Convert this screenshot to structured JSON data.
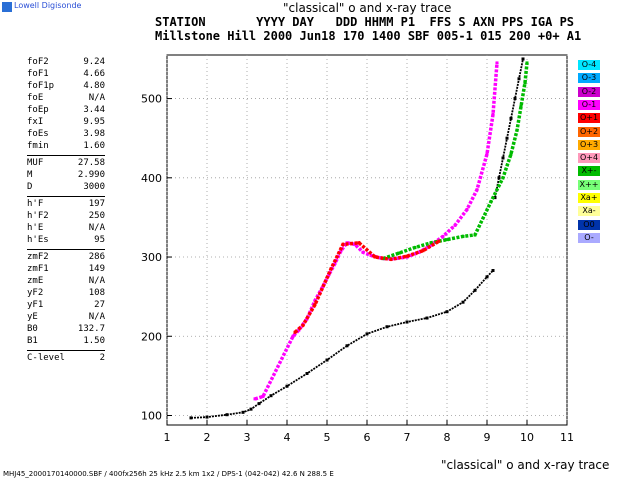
{
  "logo": {
    "text": "Lowell Digisonde"
  },
  "titles": {
    "top": "\"classical\" o and x-ray trace",
    "bottom": "\"classical\" o and x-ray trace"
  },
  "header": {
    "line1": "STATION       YYYY DAY   DDD HHMM P1  FFS S AXN PPS IGA PS",
    "line2": "Millstone Hill 2000 Jun18 170 1400 SBF 005-1 015 200 +0+ A1"
  },
  "params": [
    [
      {
        "name": "foF2",
        "value": "9.24"
      },
      {
        "name": "foF1",
        "value": "4.66"
      },
      {
        "name": "foF1p",
        "value": "4.80"
      },
      {
        "name": "foE",
        "value": "N/A"
      },
      {
        "name": "foEp",
        "value": "3.44"
      },
      {
        "name": "fxI",
        "value": "9.95"
      },
      {
        "name": "foEs",
        "value": "3.98"
      },
      {
        "name": "fmin",
        "value": "1.60"
      }
    ],
    [
      {
        "name": "MUF",
        "value": "27.58"
      },
      {
        "name": "M",
        "value": "2.990"
      },
      {
        "name": "D",
        "value": "3000"
      }
    ],
    [
      {
        "name": "h'F",
        "value": "197"
      },
      {
        "name": "h'F2",
        "value": "250"
      },
      {
        "name": "h'E",
        "value": "N/A"
      },
      {
        "name": "h'Es",
        "value": "95"
      }
    ],
    [
      {
        "name": "zmF2",
        "value": "286"
      },
      {
        "name": "zmF1",
        "value": "149"
      },
      {
        "name": "zmE",
        "value": "N/A"
      },
      {
        "name": "yF2",
        "value": "108"
      },
      {
        "name": "yF1",
        "value": "27"
      },
      {
        "name": "yE",
        "value": "N/A"
      },
      {
        "name": "B0",
        "value": "132.7"
      },
      {
        "name": "B1",
        "value": "1.50"
      }
    ],
    [
      {
        "name": "C-level",
        "value": "2"
      }
    ]
  ],
  "legend": [
    {
      "label": "O-4",
      "color": "#00e5ff"
    },
    {
      "label": "O-3",
      "color": "#00aaff"
    },
    {
      "label": "O-2",
      "color": "#cc00cc"
    },
    {
      "label": "O-1",
      "color": "#ff00ff"
    },
    {
      "label": "O+1",
      "color": "#ff0000"
    },
    {
      "label": "O+2",
      "color": "#ff6600"
    },
    {
      "label": "O+3",
      "color": "#ffaa00"
    },
    {
      "label": "O+4",
      "color": "#ff99bb"
    },
    {
      "label": "X+-",
      "color": "#00bb00"
    },
    {
      "label": "X++",
      "color": "#77ff77"
    },
    {
      "label": "Xa+",
      "color": "#ffff00"
    },
    {
      "label": "Xa-",
      "color": "#ffff99"
    },
    {
      "label": "O0",
      "color": "#0033aa"
    },
    {
      "label": "O-",
      "color": "#aaaaff"
    }
  ],
  "footer": {
    "text": "MHJ45_2000170140000.SBF / 400fx256h 25 kHz 2.5 km 1x2 / DPS-1 (042-042) 42.6 N 288.5 E"
  },
  "chart_data": {
    "type": "scatter",
    "xlim": [
      1,
      11
    ],
    "ylim": [
      88,
      555
    ],
    "xticks": [
      "1",
      "2",
      "3",
      "4",
      "5",
      "6",
      "7",
      "8",
      "9",
      "10",
      "11"
    ],
    "yticks": [
      "100",
      "200",
      "300",
      "400",
      "500"
    ],
    "grid": true,
    "series": [
      {
        "color": "#000000",
        "points": [
          [
            1.6,
            97
          ],
          [
            2.0,
            98
          ],
          [
            2.5,
            101
          ],
          [
            2.9,
            104
          ],
          [
            3.1,
            108
          ],
          [
            3.3,
            115
          ],
          [
            3.6,
            125
          ],
          [
            4.0,
            137
          ],
          [
            4.5,
            153
          ],
          [
            5.0,
            170
          ],
          [
            5.5,
            188
          ],
          [
            6.0,
            203
          ],
          [
            6.5,
            212
          ],
          [
            7.0,
            218
          ],
          [
            7.5,
            223
          ],
          [
            8.0,
            231
          ],
          [
            8.4,
            243
          ],
          [
            8.7,
            258
          ],
          [
            9.0,
            275
          ],
          [
            9.15,
            283
          ]
        ]
      },
      {
        "color": "#000000",
        "points": [
          [
            9.2,
            375
          ],
          [
            9.3,
            400
          ],
          [
            9.4,
            425
          ],
          [
            9.5,
            450
          ],
          [
            9.6,
            475
          ],
          [
            9.7,
            500
          ],
          [
            9.8,
            525
          ],
          [
            9.9,
            550
          ]
        ]
      },
      {
        "color": "#ff00ff",
        "points": [
          [
            3.2,
            121
          ],
          [
            3.4,
            124
          ],
          [
            4.15,
            200
          ],
          [
            4.3,
            208
          ],
          [
            4.5,
            222
          ],
          [
            4.7,
            245
          ],
          [
            4.9,
            263
          ],
          [
            5.05,
            278
          ],
          [
            5.2,
            292
          ],
          [
            5.35,
            308
          ],
          [
            5.5,
            318
          ],
          [
            5.7,
            316
          ],
          [
            5.9,
            306
          ],
          [
            6.1,
            302
          ],
          [
            6.4,
            298
          ],
          [
            6.7,
            298
          ],
          [
            7.0,
            300
          ],
          [
            7.3,
            306
          ],
          [
            7.6,
            315
          ],
          [
            7.9,
            326
          ],
          [
            8.2,
            340
          ],
          [
            8.5,
            360
          ],
          [
            8.75,
            385
          ],
          [
            9.0,
            430
          ],
          [
            9.15,
            480
          ],
          [
            9.25,
            545
          ]
        ]
      },
      {
        "color": "#00bb00",
        "points": [
          [
            6.4,
            298
          ],
          [
            6.8,
            305
          ],
          [
            7.2,
            312
          ],
          [
            7.6,
            318
          ],
          [
            8.0,
            322
          ],
          [
            8.4,
            326
          ],
          [
            8.7,
            328
          ],
          [
            9.1,
            370
          ],
          [
            9.4,
            400
          ],
          [
            9.6,
            430
          ],
          [
            9.75,
            460
          ],
          [
            9.85,
            490
          ],
          [
            9.95,
            520
          ],
          [
            10.0,
            545
          ]
        ]
      },
      {
        "color": "#ff0000",
        "points": [
          [
            4.2,
            205
          ],
          [
            4.4,
            214
          ],
          [
            4.7,
            240
          ],
          [
            5.1,
            285
          ],
          [
            5.4,
            316
          ],
          [
            5.8,
            318
          ],
          [
            6.2,
            300
          ],
          [
            6.6,
            297
          ],
          [
            7.0,
            301
          ],
          [
            7.4,
            308
          ],
          [
            7.8,
            320
          ]
        ]
      }
    ]
  }
}
